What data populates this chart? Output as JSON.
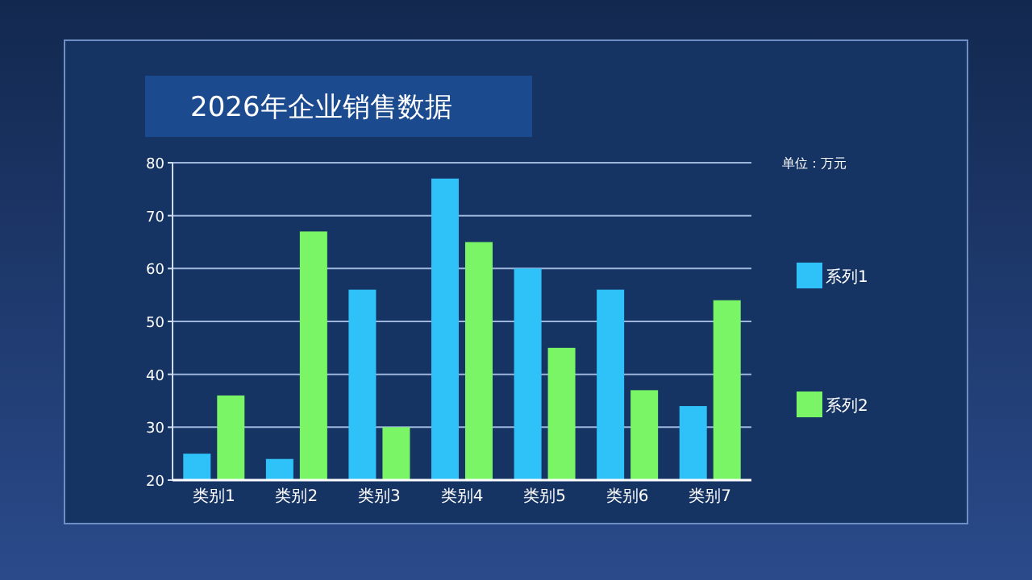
{
  "chart_data": {
    "type": "bar",
    "title": "2026年企业销售数据",
    "annotations": [
      "单位：万元"
    ],
    "categories": [
      "类别1",
      "类别2",
      "类别3",
      "类别4",
      "类别5",
      "类别6",
      "类别7"
    ],
    "series": [
      {
        "name": "系列1",
        "color": "#2ec2f8",
        "values": [
          25,
          24,
          56,
          77,
          60,
          56,
          34
        ]
      },
      {
        "name": "系列2",
        "color": "#7af566",
        "values": [
          36,
          67,
          30,
          65,
          45,
          37,
          54
        ]
      }
    ],
    "ylim": [
      20,
      80
    ],
    "yticks": [
      20,
      30,
      40,
      50,
      60,
      70,
      80
    ],
    "grid": "y",
    "legend": "right"
  }
}
